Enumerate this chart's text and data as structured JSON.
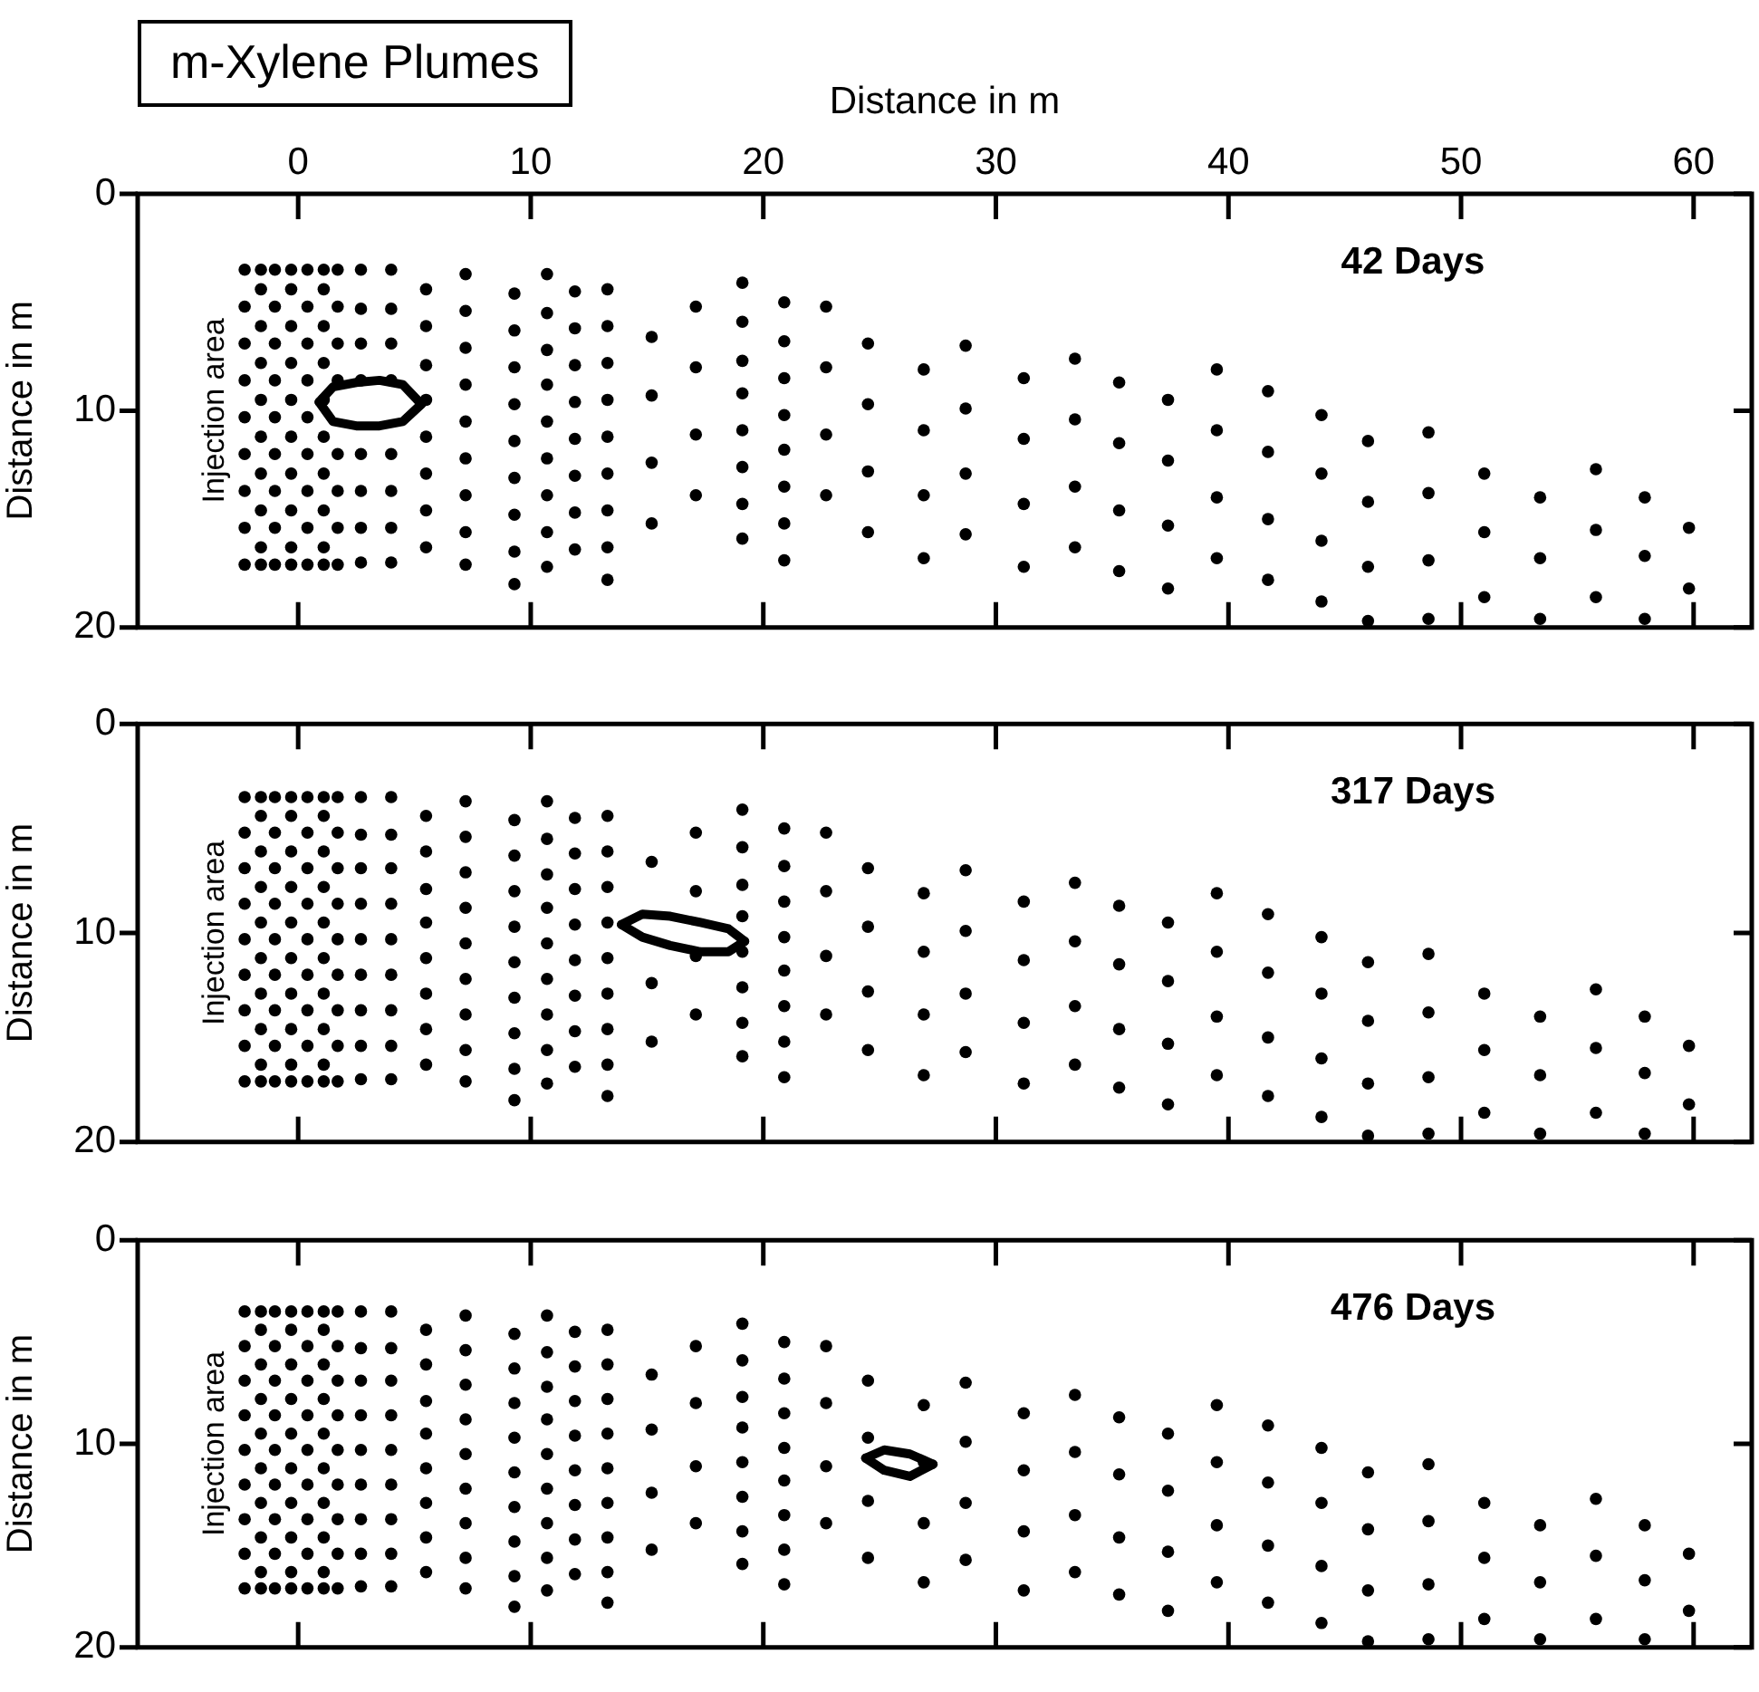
{
  "chart_data": [
    {
      "type": "scatter",
      "title": "m-Xylene Plumes",
      "xlabel": "Distance in m",
      "ylabel": "Distance in m",
      "xlim": [
        -6.9,
        62.5
      ],
      "xticks": [
        0,
        10,
        20,
        30,
        40,
        50,
        60
      ],
      "ylim": [
        20,
        0
      ],
      "yticks": [
        0,
        10,
        20
      ],
      "grid": false,
      "legend": false,
      "marker": "circle",
      "annotations": [
        "42 Days",
        "Injection area"
      ],
      "series": [
        {
          "type": "scatter",
          "color": "#000000",
          "x": [
            -2.3,
            -1.6,
            -1.0,
            -0.3,
            0.4,
            1.1,
            1.7,
            -1.6,
            -0.3,
            1.1,
            -2.3,
            -1.0,
            0.4,
            1.7,
            -1.6,
            -0.3,
            1.1,
            -2.3,
            -1.0,
            0.4,
            1.7,
            -1.6,
            -0.3,
            1.1,
            -2.3,
            -1.0,
            0.4,
            1.7,
            -1.6,
            -0.3,
            1.1,
            -2.3,
            -1.0,
            0.4,
            null,
            -1.6,
            -0.3,
            1.1,
            -2.3,
            -1.0,
            0.4,
            1.7,
            -1.6,
            -0.3,
            1.1,
            -2.3,
            -1.0,
            0.4,
            1.7,
            -1.6,
            -0.3,
            1.1,
            -2.3,
            -1.0,
            0.4,
            1.7,
            -1.6,
            -0.3,
            1.1,
            -2.3,
            -1.6,
            -1.0,
            -0.3,
            0.4,
            1.1,
            1.7,
            2.7,
            2.7,
            2.7,
            2.7,
            null,
            2.7,
            2.7,
            2.7,
            2.7,
            4.0,
            4.0,
            4.0,
            4.0,
            null,
            4.0,
            4.0,
            4.0,
            4.0,
            5.5,
            5.5,
            5.5,
            5.5,
            5.5,
            5.5,
            5.5,
            5.5,
            7.2,
            7.2,
            7.2,
            7.2,
            7.2,
            7.2,
            7.2,
            7.2,
            7.2,
            9.3,
            9.3,
            9.3,
            9.3,
            9.3,
            9.3,
            9.3,
            9.3,
            9.3,
            10.7,
            10.7,
            10.7,
            10.7,
            10.7,
            10.7,
            10.7,
            10.7,
            10.7,
            11.9,
            11.9,
            11.9,
            11.9,
            11.9,
            11.9,
            11.9,
            11.9,
            13.3,
            13.3,
            13.3,
            13.3,
            13.3,
            13.3,
            13.3,
            13.3,
            13.3,
            15.2,
            15.2,
            15.2,
            15.2,
            17.1,
            17.1,
            17.1,
            17.1,
            19.1,
            19.1,
            19.1,
            19.1,
            19.1,
            19.1,
            19.1,
            19.1,
            20.9,
            20.9,
            20.9,
            20.9,
            20.9,
            20.9,
            20.9,
            20.9,
            22.7,
            22.7,
            22.7,
            22.7,
            24.5,
            24.5,
            24.5,
            24.5,
            26.9,
            26.9,
            26.9,
            26.9,
            28.7,
            28.7,
            28.7,
            28.7,
            31.2,
            31.2,
            31.2,
            31.2,
            33.4,
            33.4,
            33.4,
            33.4,
            35.3,
            35.3,
            35.3,
            35.3,
            37.4,
            37.4,
            37.4,
            37.4,
            39.5,
            39.5,
            39.5,
            39.5,
            41.7,
            41.7,
            41.7,
            41.7,
            44.0,
            44.0,
            44.0,
            44.0,
            46.0,
            46.0,
            46.0,
            46.0,
            48.6,
            48.6,
            48.6,
            48.6,
            51.0,
            51.0,
            51.0,
            53.4,
            53.4,
            53.4,
            55.8,
            55.8,
            55.8,
            57.9,
            57.9,
            57.9,
            59.8,
            59.8
          ],
          "values": [
            3.5,
            3.5,
            3.5,
            3.5,
            3.5,
            3.5,
            3.5,
            4.4,
            4.4,
            4.4,
            5.2,
            5.2,
            5.2,
            5.2,
            6.1,
            6.1,
            6.1,
            6.9,
            6.9,
            6.9,
            6.9,
            7.8,
            7.8,
            7.8,
            8.6,
            8.6,
            8.6,
            8.6,
            9.5,
            9.5,
            9.5,
            10.3,
            10.3,
            10.3,
            null,
            11.2,
            11.2,
            11.2,
            12.0,
            12.0,
            12.0,
            12.0,
            12.9,
            12.9,
            12.9,
            13.7,
            13.7,
            13.7,
            13.7,
            14.6,
            14.6,
            14.6,
            15.4,
            15.4,
            15.4,
            15.4,
            16.3,
            16.3,
            16.3,
            17.1,
            17.1,
            17.1,
            17.1,
            17.1,
            17.1,
            17.1,
            3.5,
            5.3,
            6.9,
            8.6,
            null,
            12.0,
            13.7,
            15.4,
            17.0,
            3.5,
            5.3,
            6.9,
            8.6,
            null,
            12.0,
            13.7,
            15.4,
            17.0,
            4.4,
            6.1,
            7.9,
            9.5,
            11.2,
            12.9,
            14.6,
            16.3,
            3.7,
            5.4,
            7.1,
            8.8,
            10.5,
            12.2,
            13.9,
            15.6,
            17.1,
            4.6,
            6.3,
            8.0,
            9.7,
            11.4,
            13.1,
            14.8,
            16.5,
            18.0,
            3.7,
            5.5,
            7.2,
            8.8,
            10.5,
            12.2,
            13.9,
            15.6,
            17.2,
            4.5,
            6.2,
            7.9,
            9.6,
            11.3,
            13.0,
            14.7,
            16.4,
            4.4,
            6.1,
            7.8,
            9.5,
            11.2,
            12.9,
            14.6,
            16.3,
            17.8,
            6.6,
            9.3,
            12.4,
            15.2,
            5.2,
            8.0,
            11.1,
            13.9,
            4.1,
            5.9,
            7.7,
            9.2,
            10.9,
            12.6,
            14.3,
            15.9,
            5.0,
            6.8,
            8.5,
            10.2,
            11.8,
            13.5,
            15.2,
            16.9,
            5.2,
            8.0,
            11.1,
            13.9,
            6.9,
            9.7,
            12.8,
            15.6,
            8.1,
            10.9,
            13.9,
            16.8,
            7.0,
            9.9,
            12.9,
            15.7,
            8.5,
            11.3,
            14.3,
            17.2,
            7.6,
            10.4,
            13.5,
            16.3,
            8.7,
            11.5,
            14.6,
            17.4,
            9.5,
            12.3,
            15.3,
            18.2,
            8.1,
            10.9,
            14.0,
            16.8,
            9.1,
            11.9,
            15.0,
            17.8,
            10.2,
            12.9,
            16.0,
            18.8,
            11.4,
            14.2,
            17.2,
            19.7,
            11.0,
            13.8,
            16.9,
            19.6,
            12.9,
            15.6,
            18.6,
            14.0,
            16.8,
            19.6,
            12.7,
            15.5,
            18.6,
            14.0,
            16.7,
            19.6,
            15.4,
            18.2
          ]
        },
        {
          "type": "line",
          "color": "#000000",
          "marker": "none",
          "line_style": "solid",
          "x": [
            0.9,
            1.5,
            2.5,
            3.5,
            4.5,
            5.3
          ],
          "values": [
            9.6,
            8.9,
            8.7,
            8.6,
            8.8,
            9.7
          ]
        },
        {
          "type": "line",
          "color": "#000000",
          "marker": "none",
          "line_style": "solid",
          "x": [
            0.9,
            1.5,
            2.5,
            3.5,
            4.5,
            5.3
          ],
          "values": [
            9.6,
            10.5,
            10.7,
            10.7,
            10.5,
            9.7
          ]
        }
      ]
    },
    {
      "type": "scatter",
      "ylabel": "Distance in m",
      "xlim": [
        -6.9,
        62.5
      ],
      "xticks": [
        0,
        10,
        20,
        30,
        40,
        50,
        60
      ],
      "ylim": [
        20,
        0
      ],
      "yticks": [
        0,
        10,
        20
      ],
      "tick_labels": "y",
      "grid": false,
      "legend": false,
      "marker": "circle",
      "annotations": [
        "317 Days",
        "Injection area"
      ],
      "series": [
        {
          "type": "scatter",
          "color": "#000000",
          "x": [
            -2.3,
            -1.6,
            -1.0,
            -0.3,
            0.4,
            1.1,
            1.7,
            -1.6,
            -0.3,
            1.1,
            -2.3,
            -1.0,
            0.4,
            1.7,
            -1.6,
            -0.3,
            1.1,
            -2.3,
            -1.0,
            0.4,
            1.7,
            -1.6,
            -0.3,
            1.1,
            -2.3,
            -1.0,
            0.4,
            1.7,
            -1.6,
            -0.3,
            1.1,
            -2.3,
            -1.0,
            0.4,
            1.7,
            -1.6,
            -0.3,
            1.1,
            -2.3,
            -1.0,
            0.4,
            1.7,
            -1.6,
            -0.3,
            1.1,
            -2.3,
            -1.0,
            0.4,
            1.7,
            -1.6,
            -0.3,
            1.1,
            -2.3,
            -1.0,
            0.4,
            1.7,
            -1.6,
            -0.3,
            1.1,
            -2.3,
            -1.6,
            -1.0,
            -0.3,
            0.4,
            1.1,
            1.7,
            2.7,
            2.7,
            2.7,
            2.7,
            2.7,
            2.7,
            2.7,
            2.7,
            2.7,
            4.0,
            4.0,
            4.0,
            4.0,
            4.0,
            4.0,
            4.0,
            4.0,
            4.0,
            5.5,
            5.5,
            5.5,
            5.5,
            5.5,
            5.5,
            5.5,
            5.5,
            7.2,
            7.2,
            7.2,
            7.2,
            7.2,
            7.2,
            7.2,
            7.2,
            7.2,
            9.3,
            9.3,
            9.3,
            9.3,
            9.3,
            9.3,
            9.3,
            9.3,
            9.3,
            10.7,
            10.7,
            10.7,
            10.7,
            10.7,
            10.7,
            10.7,
            10.7,
            10.7,
            11.9,
            11.9,
            11.9,
            11.9,
            11.9,
            11.9,
            11.9,
            11.9,
            13.3,
            13.3,
            13.3,
            13.3,
            13.3,
            13.3,
            13.3,
            13.3,
            13.3,
            15.2,
            null,
            15.2,
            15.2,
            17.1,
            17.1,
            17.1,
            17.1,
            19.1,
            19.1,
            19.1,
            19.1,
            19.1,
            19.1,
            19.1,
            19.1,
            20.9,
            20.9,
            20.9,
            20.9,
            20.9,
            20.9,
            20.9,
            20.9,
            22.7,
            22.7,
            22.7,
            22.7,
            24.5,
            24.5,
            24.5,
            24.5,
            26.9,
            26.9,
            26.9,
            26.9,
            28.7,
            28.7,
            28.7,
            28.7,
            31.2,
            31.2,
            31.2,
            31.2,
            33.4,
            33.4,
            33.4,
            33.4,
            35.3,
            35.3,
            35.3,
            35.3,
            37.4,
            37.4,
            37.4,
            37.4,
            39.5,
            39.5,
            39.5,
            39.5,
            41.7,
            41.7,
            41.7,
            41.7,
            44.0,
            44.0,
            44.0,
            44.0,
            46.0,
            46.0,
            46.0,
            46.0,
            48.6,
            48.6,
            48.6,
            48.6,
            51.0,
            51.0,
            51.0,
            53.4,
            53.4,
            53.4,
            55.8,
            55.8,
            55.8,
            57.9,
            57.9,
            57.9,
            59.8,
            59.8
          ],
          "values": [
            3.5,
            3.5,
            3.5,
            3.5,
            3.5,
            3.5,
            3.5,
            4.4,
            4.4,
            4.4,
            5.2,
            5.2,
            5.2,
            5.2,
            6.1,
            6.1,
            6.1,
            6.9,
            6.9,
            6.9,
            6.9,
            7.8,
            7.8,
            7.8,
            8.6,
            8.6,
            8.6,
            8.6,
            9.5,
            9.5,
            9.5,
            10.3,
            10.3,
            10.3,
            10.3,
            11.2,
            11.2,
            11.2,
            12.0,
            12.0,
            12.0,
            12.0,
            12.9,
            12.9,
            12.9,
            13.7,
            13.7,
            13.7,
            13.7,
            14.6,
            14.6,
            14.6,
            15.4,
            15.4,
            15.4,
            15.4,
            16.3,
            16.3,
            16.3,
            17.1,
            17.1,
            17.1,
            17.1,
            17.1,
            17.1,
            17.1,
            3.5,
            5.3,
            6.9,
            8.6,
            10.3,
            12.0,
            13.7,
            15.4,
            17.0,
            3.5,
            5.3,
            6.9,
            8.6,
            10.3,
            12.0,
            13.7,
            15.4,
            17.0,
            4.4,
            6.1,
            7.9,
            9.5,
            11.2,
            12.9,
            14.6,
            16.3,
            3.7,
            5.4,
            7.1,
            8.8,
            10.5,
            12.2,
            13.9,
            15.6,
            17.1,
            4.6,
            6.3,
            8.0,
            9.7,
            11.4,
            13.1,
            14.8,
            16.5,
            18.0,
            3.7,
            5.5,
            7.2,
            8.8,
            10.5,
            12.2,
            13.9,
            15.6,
            17.2,
            4.5,
            6.2,
            7.9,
            9.6,
            11.3,
            13.0,
            14.7,
            16.4,
            4.4,
            6.1,
            7.8,
            9.5,
            11.2,
            12.9,
            14.6,
            16.3,
            17.8,
            6.6,
            null,
            12.4,
            15.2,
            5.2,
            8.0,
            11.1,
            13.9,
            4.1,
            5.9,
            7.7,
            9.2,
            10.9,
            12.6,
            14.3,
            15.9,
            5.0,
            6.8,
            8.5,
            10.2,
            11.8,
            13.5,
            15.2,
            16.9,
            5.2,
            8.0,
            11.1,
            13.9,
            6.9,
            9.7,
            12.8,
            15.6,
            8.1,
            10.9,
            13.9,
            16.8,
            7.0,
            9.9,
            12.9,
            15.7,
            8.5,
            11.3,
            14.3,
            17.2,
            7.6,
            10.4,
            13.5,
            16.3,
            8.7,
            11.5,
            14.6,
            17.4,
            9.5,
            12.3,
            15.3,
            18.2,
            8.1,
            10.9,
            14.0,
            16.8,
            9.1,
            11.9,
            15.0,
            17.8,
            10.2,
            12.9,
            16.0,
            18.8,
            11.4,
            14.2,
            17.2,
            19.7,
            11.0,
            13.8,
            16.9,
            19.6,
            12.9,
            15.6,
            18.6,
            14.0,
            16.8,
            19.6,
            12.7,
            15.5,
            18.6,
            14.0,
            16.7,
            19.6,
            15.4,
            18.2
          ]
        },
        {
          "type": "line",
          "color": "#000000",
          "marker": "none",
          "line_style": "solid",
          "x": [
            13.9,
            14.8,
            16.0,
            17.3,
            18.5,
            19.2
          ],
          "values": [
            9.6,
            9.1,
            9.2,
            9.5,
            9.8,
            10.4
          ]
        },
        {
          "type": "line",
          "color": "#000000",
          "marker": "none",
          "line_style": "solid",
          "x": [
            13.9,
            14.8,
            16.0,
            17.3,
            18.5,
            19.2
          ],
          "values": [
            9.6,
            10.2,
            10.6,
            10.9,
            10.9,
            10.4
          ]
        }
      ]
    },
    {
      "type": "scatter",
      "ylabel": "Distance in m",
      "xlim": [
        -6.9,
        62.5
      ],
      "xticks": [
        0,
        10,
        20,
        30,
        40,
        50,
        60
      ],
      "ylim": [
        20,
        0
      ],
      "yticks": [
        0,
        10,
        20
      ],
      "tick_labels": "y",
      "grid": false,
      "legend": false,
      "marker": "circle",
      "annotations": [
        "476 Days",
        "Injection area"
      ],
      "series": [
        {
          "type": "scatter",
          "color": "#000000",
          "x": [
            -2.3,
            -1.6,
            -1.0,
            -0.3,
            0.4,
            1.1,
            1.7,
            -1.6,
            -0.3,
            1.1,
            -2.3,
            -1.0,
            0.4,
            1.7,
            -1.6,
            -0.3,
            1.1,
            -2.3,
            -1.0,
            0.4,
            1.7,
            -1.6,
            -0.3,
            1.1,
            -2.3,
            -1.0,
            0.4,
            1.7,
            -1.6,
            -0.3,
            1.1,
            -2.3,
            -1.0,
            0.4,
            1.7,
            -1.6,
            -0.3,
            1.1,
            -2.3,
            -1.0,
            0.4,
            1.7,
            -1.6,
            -0.3,
            1.1,
            -2.3,
            -1.0,
            0.4,
            1.7,
            -1.6,
            -0.3,
            1.1,
            -2.3,
            -1.0,
            0.4,
            1.7,
            -1.6,
            -0.3,
            1.1,
            -2.3,
            -1.6,
            -1.0,
            -0.3,
            0.4,
            1.1,
            1.7,
            2.7,
            2.7,
            2.7,
            2.7,
            2.7,
            2.7,
            2.7,
            2.7,
            2.7,
            4.0,
            4.0,
            4.0,
            4.0,
            4.0,
            4.0,
            4.0,
            4.0,
            4.0,
            5.5,
            5.5,
            5.5,
            5.5,
            5.5,
            5.5,
            5.5,
            5.5,
            7.2,
            7.2,
            7.2,
            7.2,
            7.2,
            7.2,
            7.2,
            7.2,
            7.2,
            9.3,
            9.3,
            9.3,
            9.3,
            9.3,
            9.3,
            9.3,
            9.3,
            9.3,
            10.7,
            10.7,
            10.7,
            10.7,
            10.7,
            10.7,
            10.7,
            10.7,
            10.7,
            11.9,
            11.9,
            11.9,
            11.9,
            11.9,
            11.9,
            11.9,
            11.9,
            13.3,
            13.3,
            13.3,
            13.3,
            13.3,
            13.3,
            13.3,
            13.3,
            13.3,
            15.2,
            15.2,
            15.2,
            15.2,
            17.1,
            17.1,
            17.1,
            17.1,
            19.1,
            19.1,
            19.1,
            19.1,
            19.1,
            19.1,
            19.1,
            19.1,
            20.9,
            20.9,
            20.9,
            20.9,
            20.9,
            20.9,
            20.9,
            20.9,
            22.7,
            22.7,
            22.7,
            22.7,
            24.5,
            24.5,
            24.5,
            24.5,
            26.9,
            26.9,
            26.9,
            26.9,
            28.7,
            28.7,
            28.7,
            28.7,
            31.2,
            31.2,
            31.2,
            31.2,
            33.4,
            33.4,
            33.4,
            33.4,
            35.3,
            35.3,
            35.3,
            35.3,
            37.4,
            37.4,
            37.4,
            37.4,
            39.5,
            39.5,
            39.5,
            39.5,
            41.7,
            41.7,
            41.7,
            41.7,
            44.0,
            44.0,
            44.0,
            44.0,
            46.0,
            46.0,
            46.0,
            46.0,
            48.6,
            48.6,
            48.6,
            48.6,
            51.0,
            51.0,
            51.0,
            53.4,
            53.4,
            53.4,
            55.8,
            55.8,
            55.8,
            57.9,
            57.9,
            57.9,
            59.8,
            59.8
          ],
          "values": [
            3.5,
            3.5,
            3.5,
            3.5,
            3.5,
            3.5,
            3.5,
            4.4,
            4.4,
            4.4,
            5.2,
            5.2,
            5.2,
            5.2,
            6.1,
            6.1,
            6.1,
            6.9,
            6.9,
            6.9,
            6.9,
            7.8,
            7.8,
            7.8,
            8.6,
            8.6,
            8.6,
            8.6,
            9.5,
            9.5,
            9.5,
            10.3,
            10.3,
            10.3,
            10.3,
            11.2,
            11.2,
            11.2,
            12.0,
            12.0,
            12.0,
            12.0,
            12.9,
            12.9,
            12.9,
            13.7,
            13.7,
            13.7,
            13.7,
            14.6,
            14.6,
            14.6,
            15.4,
            15.4,
            15.4,
            15.4,
            16.3,
            16.3,
            16.3,
            17.1,
            17.1,
            17.1,
            17.1,
            17.1,
            17.1,
            17.1,
            3.5,
            5.3,
            6.9,
            8.6,
            10.3,
            12.0,
            13.7,
            15.4,
            17.0,
            3.5,
            5.3,
            6.9,
            8.6,
            10.3,
            12.0,
            13.7,
            15.4,
            17.0,
            4.4,
            6.1,
            7.9,
            9.5,
            11.2,
            12.9,
            14.6,
            16.3,
            3.7,
            5.4,
            7.1,
            8.8,
            10.5,
            12.2,
            13.9,
            15.6,
            17.1,
            4.6,
            6.3,
            8.0,
            9.7,
            11.4,
            13.1,
            14.8,
            16.5,
            18.0,
            3.7,
            5.5,
            7.2,
            8.8,
            10.5,
            12.2,
            13.9,
            15.6,
            17.2,
            4.5,
            6.2,
            7.9,
            9.6,
            11.3,
            13.0,
            14.7,
            16.4,
            4.4,
            6.1,
            7.8,
            9.5,
            11.2,
            12.9,
            14.6,
            16.3,
            17.8,
            6.6,
            9.3,
            12.4,
            15.2,
            5.2,
            8.0,
            11.1,
            13.9,
            4.1,
            5.9,
            7.7,
            9.2,
            10.9,
            12.6,
            14.3,
            15.9,
            5.0,
            6.8,
            8.5,
            10.2,
            11.8,
            13.5,
            15.2,
            16.9,
            5.2,
            8.0,
            11.1,
            13.9,
            6.9,
            9.7,
            12.8,
            15.6,
            8.1,
            10.9,
            13.9,
            16.8,
            7.0,
            9.9,
            12.9,
            15.7,
            8.5,
            11.3,
            14.3,
            17.2,
            7.6,
            10.4,
            13.5,
            16.3,
            8.7,
            11.5,
            14.6,
            17.4,
            9.5,
            12.3,
            15.3,
            18.2,
            8.1,
            10.9,
            14.0,
            16.8,
            9.1,
            11.9,
            15.0,
            17.8,
            10.2,
            12.9,
            16.0,
            18.8,
            11.4,
            14.2,
            17.2,
            19.7,
            11.0,
            13.8,
            16.9,
            19.6,
            12.9,
            15.6,
            18.6,
            14.0,
            16.8,
            19.6,
            12.7,
            15.5,
            18.6,
            14.0,
            16.7,
            19.6,
            15.4,
            18.2
          ]
        },
        {
          "type": "line",
          "color": "#000000",
          "marker": "none",
          "line_style": "solid",
          "x": [
            24.4,
            25.2,
            26.3,
            27.3
          ],
          "values": [
            10.7,
            10.3,
            10.5,
            11.0
          ]
        },
        {
          "type": "line",
          "color": "#000000",
          "marker": "none",
          "line_style": "solid",
          "x": [
            24.4,
            25.2,
            26.3,
            27.3
          ],
          "values": [
            10.7,
            11.3,
            11.6,
            11.0
          ]
        }
      ]
    }
  ]
}
